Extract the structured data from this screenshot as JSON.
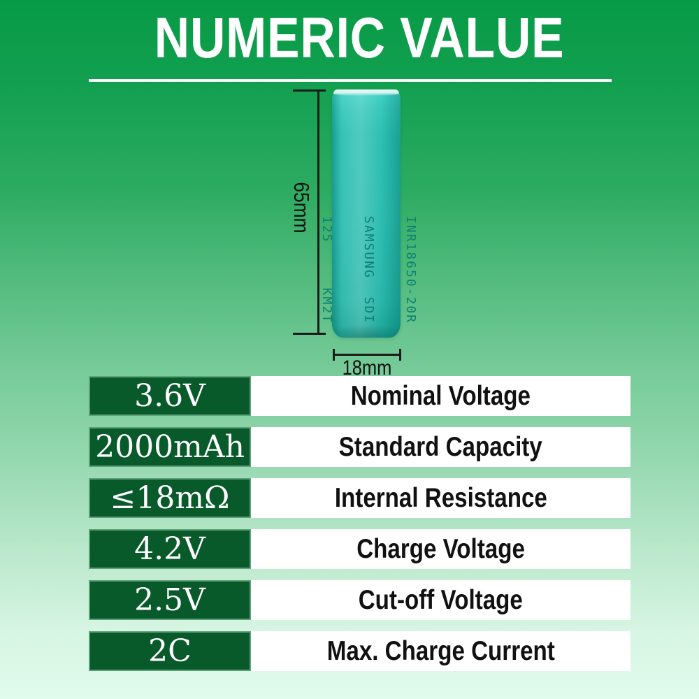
{
  "title": "NUMERIC VALUE",
  "battery": {
    "print_line1": "INR18650-20R",
    "print_line2": "SAMSUNG  SDI",
    "print_line3": "125     KM2T",
    "height_label": "65mm",
    "diameter_label": "18mm",
    "body_color": "#20b9ab",
    "print_color": "#0d8174"
  },
  "specs": {
    "rows": [
      {
        "value": "3.6V",
        "label": "Nominal Voltage"
      },
      {
        "value": "2000mAh",
        "label": "Standard Capacity"
      },
      {
        "value": "≤18mΩ",
        "label": "Internal Resistance"
      },
      {
        "value": "4.2V",
        "label": "Charge Voltage"
      },
      {
        "value": "2.5V",
        "label": "Cut-off Voltage"
      },
      {
        "value": "2C",
        "label": "Max. Charge Current"
      }
    ],
    "value_cell_bg": "#085a2b",
    "value_text_color": "#ffffff",
    "label_cell_bg": "#ffffff",
    "label_text_color": "#111111"
  },
  "colors": {
    "background_top": "#079a46",
    "background_bottom": "#e1fbec",
    "title_color": "#ffffff",
    "divider_color": "#ffffff",
    "dimension_line_color": "#1a1a1a"
  }
}
